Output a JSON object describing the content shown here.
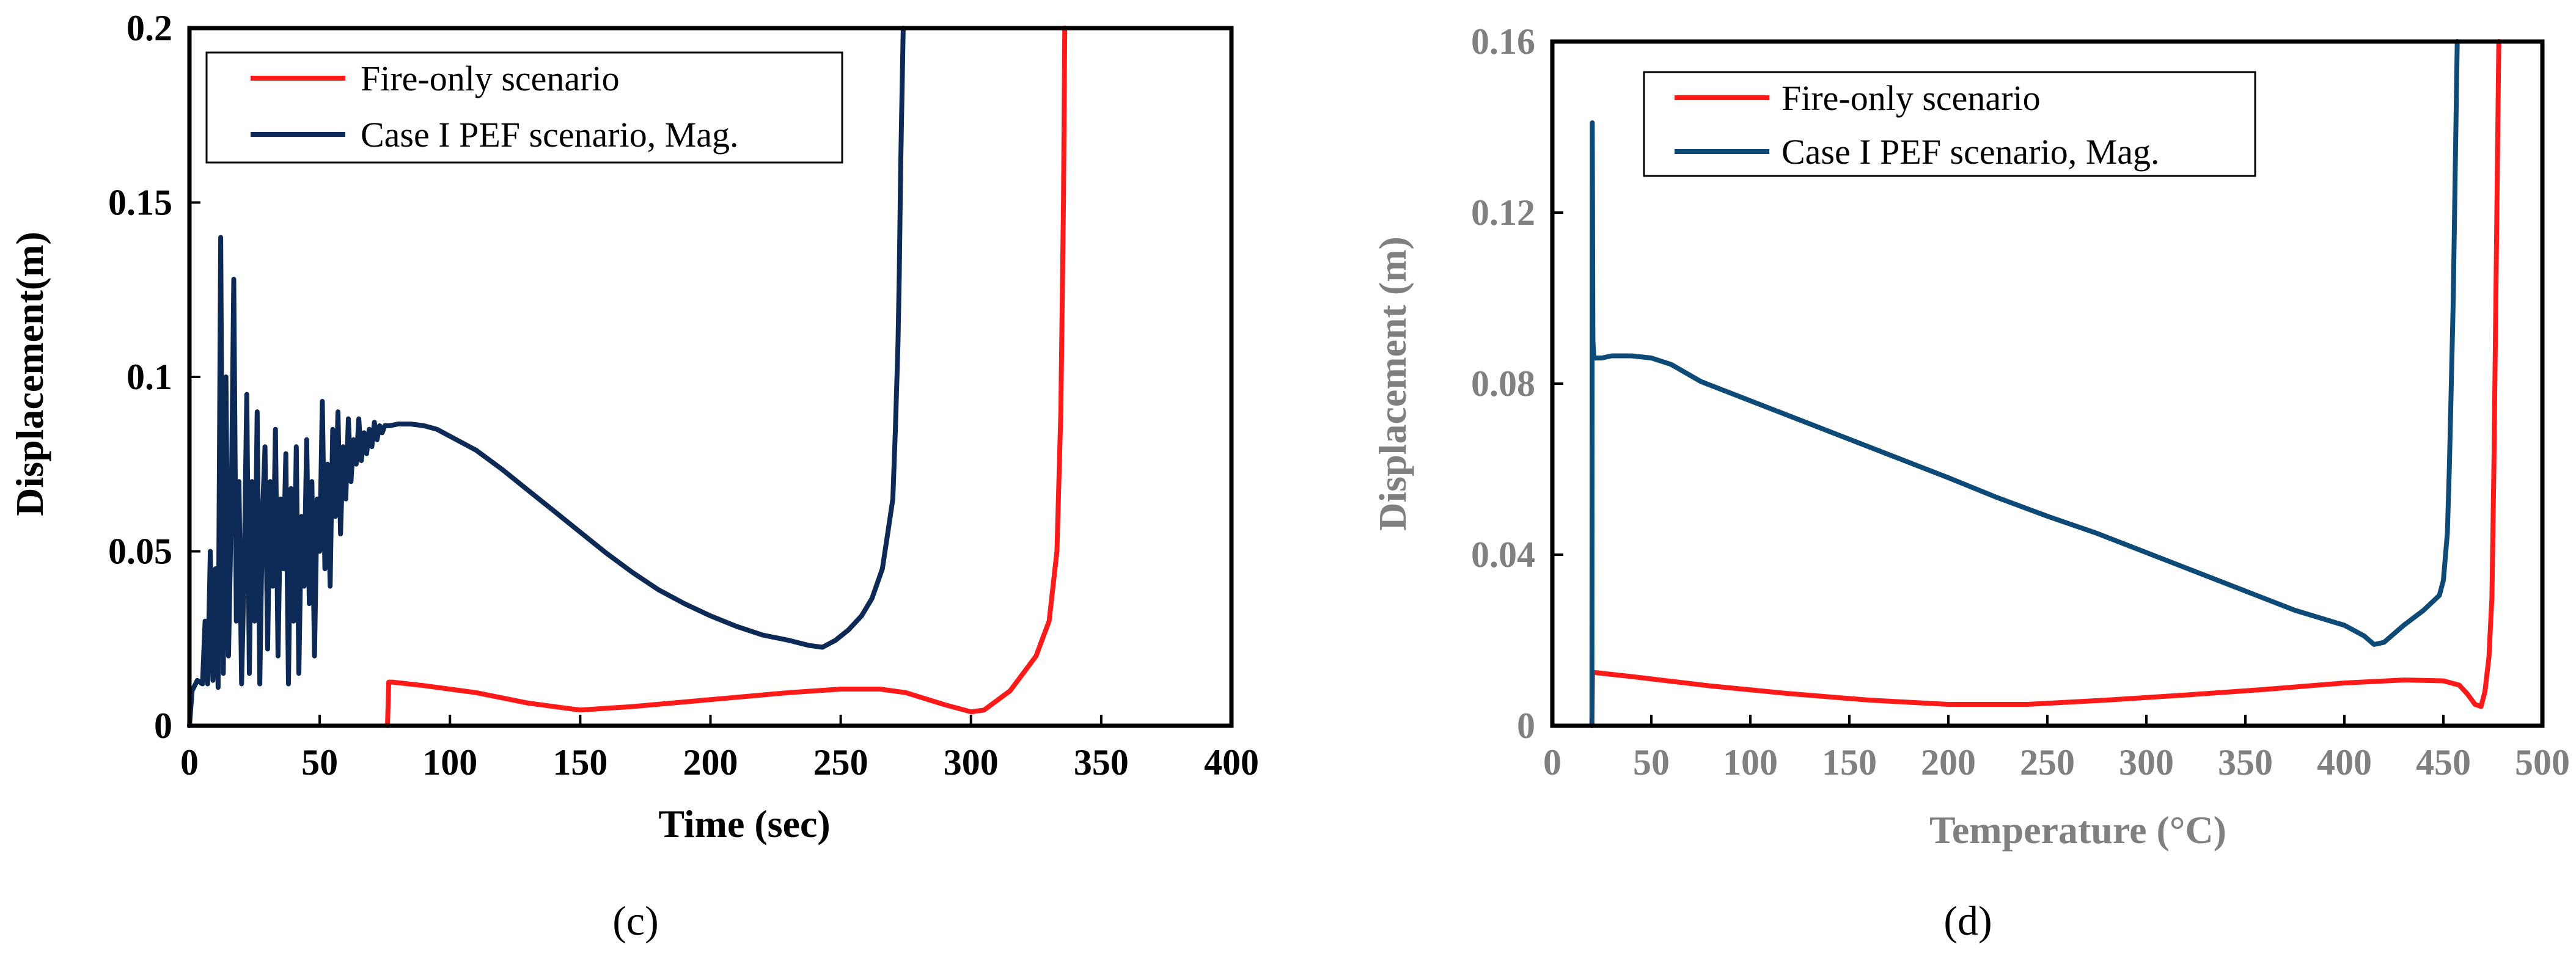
{
  "chart_data": [
    {
      "id": "c",
      "type": "line",
      "panel_label": "(c)",
      "title": "",
      "xlabel": "Time (sec)",
      "ylabel": "Displacement(m)",
      "xlim": [
        0,
        400
      ],
      "ylim": [
        0,
        0.2
      ],
      "xticks": [
        "0",
        "50",
        "100",
        "150",
        "200",
        "250",
        "300",
        "350",
        "400"
      ],
      "xtick_values": [
        0,
        50,
        100,
        150,
        200,
        250,
        300,
        350,
        400
      ],
      "yticks": [
        "0",
        "0.05",
        "0.1",
        "0.15",
        "0.2"
      ],
      "ytick_values": [
        0,
        0.05,
        0.1,
        0.15,
        0.2
      ],
      "legend": "top-left",
      "grid": false,
      "axis_color": "#000000",
      "series": [
        {
          "name": "Fire-only scenario",
          "color": "#ff1a1a",
          "x": [
            76,
            76.5,
            78,
            90,
            110,
            130,
            150,
            170,
            200,
            230,
            250,
            265,
            275,
            290,
            300,
            305,
            315,
            325,
            330,
            333,
            334.5,
            335.5,
            336
          ],
          "y": [
            0,
            0.0125,
            0.0125,
            0.0115,
            0.0095,
            0.0065,
            0.0045,
            0.0055,
            0.0075,
            0.0095,
            0.0105,
            0.0105,
            0.0095,
            0.006,
            0.004,
            0.0045,
            0.01,
            0.02,
            0.03,
            0.05,
            0.09,
            0.15,
            0.2
          ]
        },
        {
          "name": "Case I PEF scenario, Mag.",
          "color": "#0d2a57",
          "x": [
            0,
            1,
            3,
            5,
            6,
            7,
            8,
            9,
            10,
            11,
            12,
            13,
            14,
            15,
            16,
            17,
            18,
            19,
            20,
            21,
            22,
            23,
            24,
            25,
            26,
            27,
            28,
            29,
            30,
            31,
            32,
            33,
            34,
            35,
            36,
            37,
            38,
            39,
            40,
            41,
            42,
            43,
            44,
            45,
            46,
            47,
            48,
            49,
            50,
            51,
            52,
            53,
            54,
            55,
            56,
            57,
            58,
            59,
            60,
            61,
            62,
            63,
            64,
            65,
            66,
            67,
            68,
            69,
            70,
            71,
            72,
            73,
            74,
            75,
            77,
            80,
            85,
            90,
            95,
            100,
            110,
            120,
            130,
            140,
            150,
            160,
            170,
            180,
            190,
            200,
            210,
            220,
            230,
            238,
            243,
            248,
            253,
            258,
            262,
            266,
            268,
            270,
            271,
            272,
            272.5,
            273,
            273.5,
            274
          ],
          "y": [
            0,
            0.01,
            0.013,
            0.012,
            0.03,
            0.012,
            0.05,
            0.013,
            0.045,
            0.011,
            0.14,
            0.015,
            0.1,
            0.02,
            0.06,
            0.128,
            0.03,
            0.07,
            0.012,
            0.045,
            0.095,
            0.015,
            0.07,
            0.03,
            0.09,
            0.012,
            0.06,
            0.08,
            0.022,
            0.07,
            0.04,
            0.085,
            0.02,
            0.065,
            0.045,
            0.078,
            0.012,
            0.068,
            0.03,
            0.08,
            0.015,
            0.06,
            0.04,
            0.082,
            0.035,
            0.07,
            0.02,
            0.065,
            0.05,
            0.093,
            0.045,
            0.075,
            0.04,
            0.085,
            0.06,
            0.09,
            0.055,
            0.08,
            0.065,
            0.088,
            0.07,
            0.082,
            0.075,
            0.088,
            0.076,
            0.084,
            0.078,
            0.085,
            0.08,
            0.087,
            0.082,
            0.086,
            0.084,
            0.086,
            0.086,
            0.0865,
            0.0865,
            0.086,
            0.085,
            0.083,
            0.079,
            0.0735,
            0.0675,
            0.0615,
            0.0555,
            0.0495,
            0.044,
            0.039,
            0.035,
            0.0315,
            0.0285,
            0.026,
            0.0245,
            0.023,
            0.0225,
            0.0245,
            0.0275,
            0.0315,
            0.0365,
            0.045,
            0.055,
            0.065,
            0.085,
            0.11,
            0.13,
            0.16,
            0.18,
            0.2
          ]
        }
      ]
    },
    {
      "id": "d",
      "type": "line",
      "panel_label": "(d)",
      "title": "",
      "xlabel": "Temperature (°C)",
      "ylabel": "Displacement (m)",
      "xlim": [
        0,
        500
      ],
      "ylim": [
        0,
        0.16
      ],
      "xticks": [
        "0",
        "50",
        "100",
        "150",
        "200",
        "250",
        "300",
        "350",
        "400",
        "450",
        "500"
      ],
      "xtick_values": [
        0,
        50,
        100,
        150,
        200,
        250,
        300,
        350,
        400,
        450,
        500
      ],
      "yticks": [
        "0",
        "0.04",
        "0.08",
        "0.12",
        "0.16"
      ],
      "ytick_values": [
        0,
        0.04,
        0.08,
        0.12,
        0.16
      ],
      "legend": "top-left",
      "grid": false,
      "axis_color": "#808080",
      "series": [
        {
          "name": "Fire-only scenario",
          "color": "#ff1a1a",
          "x": [
            20,
            20.3,
            40,
            80,
            120,
            160,
            200,
            240,
            280,
            320,
            360,
            400,
            430,
            450,
            458,
            462,
            466,
            469,
            471,
            473,
            474.5,
            475.5,
            476.5,
            477.5,
            478
          ],
          "y": [
            0,
            0.0125,
            0.0115,
            0.0093,
            0.0075,
            0.006,
            0.005,
            0.005,
            0.006,
            0.0072,
            0.0085,
            0.01,
            0.0107,
            0.0105,
            0.0095,
            0.0075,
            0.005,
            0.0045,
            0.008,
            0.016,
            0.03,
            0.06,
            0.1,
            0.14,
            0.16
          ]
        },
        {
          "name": "Case I PEF scenario, Mag.",
          "color": "#0e4a77",
          "x": [
            20,
            20.2,
            20.5,
            21,
            25,
            30,
            40,
            50,
            60,
            75,
            100,
            125,
            150,
            175,
            200,
            225,
            250,
            275,
            300,
            325,
            350,
            375,
            400,
            410,
            415,
            420,
            425,
            430,
            440,
            448,
            450,
            452,
            453,
            454,
            455,
            456,
            457
          ],
          "y": [
            0,
            0.141,
            0.09,
            0.086,
            0.086,
            0.0865,
            0.0865,
            0.086,
            0.0845,
            0.0805,
            0.076,
            0.0715,
            0.067,
            0.0625,
            0.058,
            0.0533,
            0.049,
            0.045,
            0.0405,
            0.036,
            0.0315,
            0.027,
            0.0235,
            0.021,
            0.019,
            0.0195,
            0.0215,
            0.0235,
            0.027,
            0.0305,
            0.034,
            0.045,
            0.06,
            0.08,
            0.1,
            0.13,
            0.16
          ]
        }
      ]
    }
  ]
}
